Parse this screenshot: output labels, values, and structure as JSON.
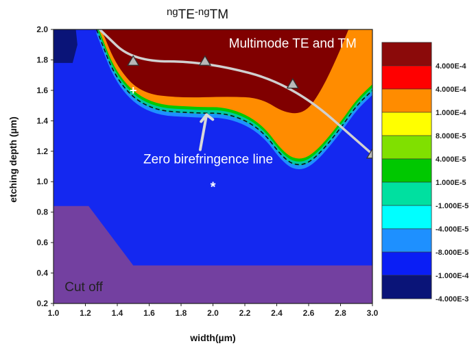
{
  "chart_data": {
    "type": "contour",
    "title_parts": [
      {
        "text": "ng",
        "shift": "super"
      },
      {
        "text": "TE",
        "shift": "base"
      },
      {
        "text": "-ng",
        "shift": "super"
      },
      {
        "text": "TM",
        "shift": "base"
      }
    ],
    "xlabel": "width(µm)",
    "ylabel": "etching depth (µm)",
    "xlim": [
      1.0,
      3.0
    ],
    "ylim": [
      0.2,
      2.0
    ],
    "x_ticks": [
      "1.0",
      "1.2",
      "1.4",
      "1.6",
      "1.8",
      "2.0",
      "2.2",
      "2.4",
      "2.6",
      "2.8",
      "3.0"
    ],
    "y_ticks": [
      "0.2",
      "0.4",
      "0.6",
      "0.8",
      "1.0",
      "1.2",
      "1.4",
      "1.6",
      "1.8",
      "2.0"
    ],
    "legend": [
      {
        "label": "4.000E-4",
        "color": "#8b0a0a"
      },
      {
        "label": "4.000E-4",
        "color": "#ff0000"
      },
      {
        "label": "1.000E-4",
        "color": "#ff8c00"
      },
      {
        "label": "8.000E-5",
        "color": "#ffff00"
      },
      {
        "label": "4.000E-5",
        "color": "#80e000"
      },
      {
        "label": "1.000E-5",
        "color": "#00c800"
      },
      {
        "label": "-1.000E-5",
        "color": "#00e0a0"
      },
      {
        "label": "-4.000E-5",
        "color": "#00ffff"
      },
      {
        "label": "-8.000E-5",
        "color": "#1e90ff"
      },
      {
        "label": "-1.000E-4",
        "color": "#0a1ef5"
      },
      {
        "label": "-4.000E-3",
        "color": "#0a1478"
      }
    ],
    "regions": {
      "background_color": "#1428f0",
      "cutoff_color": "#7340a0",
      "multimode_color": "#800000",
      "transition_color": "#ff8c00",
      "cutoff_boundary": [
        [
          1.0,
          0.84
        ],
        [
          1.22,
          0.84
        ],
        [
          1.5,
          0.45
        ],
        [
          3.0,
          0.45
        ]
      ],
      "zero_birefringence_line": [
        [
          1.27,
          2.0
        ],
        [
          1.4,
          1.65
        ],
        [
          1.6,
          1.47
        ],
        [
          1.9,
          1.45
        ],
        [
          2.1,
          1.45
        ],
        [
          2.3,
          1.35
        ],
        [
          2.45,
          1.14
        ],
        [
          2.55,
          1.1
        ],
        [
          2.65,
          1.16
        ],
        [
          2.8,
          1.35
        ],
        [
          2.9,
          1.5
        ],
        [
          3.0,
          1.6
        ]
      ]
    },
    "multimode_curve": [
      [
        1.29,
        2.0
      ],
      [
        1.5,
        1.79
      ],
      [
        1.95,
        1.79
      ],
      [
        2.5,
        1.64
      ],
      [
        3.0,
        1.18
      ]
    ],
    "triangle_markers": [
      [
        1.5,
        1.79
      ],
      [
        1.95,
        1.79
      ],
      [
        2.5,
        1.64
      ],
      [
        3.0,
        1.18
      ]
    ],
    "plus_marker": [
      1.5,
      1.6
    ],
    "star_marker": [
      2.0,
      0.98
    ],
    "annotations": {
      "multimode": "Multimode TE and TM",
      "zero_line": "Zero birefringence line",
      "cutoff": "Cut off"
    }
  }
}
